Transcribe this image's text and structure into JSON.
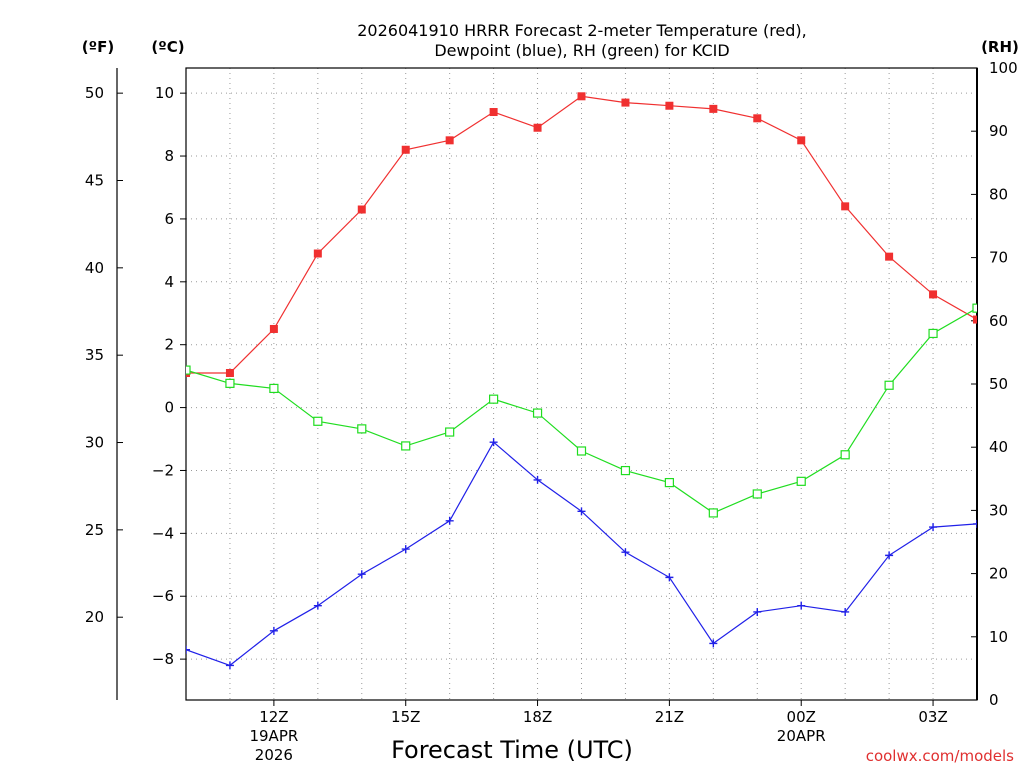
{
  "chart_data": {
    "type": "line",
    "title": "2026041910 HRRR Forecast 2-meter Temperature (red),",
    "subtitle": "Dewpoint (blue), RH (green) for KCID",
    "xlabel": "Forecast Time (UTC)",
    "units": {
      "fahrenheit": "(ºF)",
      "celsius": "(ºC)",
      "rh": "(RH)"
    },
    "x_hours": [
      10,
      11,
      12,
      13,
      14,
      15,
      16,
      17,
      18,
      19,
      20,
      21,
      22,
      23,
      24,
      25,
      26,
      27,
      28
    ],
    "xlim": [
      10,
      28
    ],
    "celsius_lim": [
      -9.3,
      10.8
    ],
    "rh_lim": [
      0,
      100
    ],
    "x_ticks": [
      {
        "hour": 12,
        "label": "12Z",
        "sub1": "19APR",
        "sub2": "2026"
      },
      {
        "hour": 15,
        "label": "15Z",
        "sub1": "",
        "sub2": ""
      },
      {
        "hour": 18,
        "label": "18Z",
        "sub1": "",
        "sub2": ""
      },
      {
        "hour": 21,
        "label": "21Z",
        "sub1": "",
        "sub2": ""
      },
      {
        "hour": 24,
        "label": "00Z",
        "sub1": "20APR",
        "sub2": ""
      },
      {
        "hour": 27,
        "label": "03Z",
        "sub1": "",
        "sub2": ""
      }
    ],
    "celsius_ticks": [
      {
        "value": 10,
        "label": "10"
      },
      {
        "value": 8,
        "label": "8"
      },
      {
        "value": 6,
        "label": "6"
      },
      {
        "value": 4,
        "label": "4"
      },
      {
        "value": 2,
        "label": "2"
      },
      {
        "value": 0,
        "label": "0"
      },
      {
        "value": -2,
        "label": "−2"
      },
      {
        "value": -4,
        "label": "−4"
      },
      {
        "value": -6,
        "label": "−6"
      },
      {
        "value": -8,
        "label": "−8"
      }
    ],
    "fahrenheit_ticks": [
      {
        "value": 50,
        "label": "50"
      },
      {
        "value": 45,
        "label": "45"
      },
      {
        "value": 40,
        "label": "40"
      },
      {
        "value": 35,
        "label": "35"
      },
      {
        "value": 30,
        "label": "30"
      },
      {
        "value": 25,
        "label": "25"
      },
      {
        "value": 20,
        "label": "20"
      }
    ],
    "rh_ticks": [
      {
        "value": 100,
        "label": "100"
      },
      {
        "value": 90,
        "label": "90"
      },
      {
        "value": 80,
        "label": "80"
      },
      {
        "value": 70,
        "label": "70"
      },
      {
        "value": 60,
        "label": "60"
      },
      {
        "value": 50,
        "label": "50"
      },
      {
        "value": 40,
        "label": "40"
      },
      {
        "value": 30,
        "label": "30"
      },
      {
        "value": 20,
        "label": "20"
      },
      {
        "value": 10,
        "label": "10"
      },
      {
        "value": 0,
        "label": "0"
      }
    ],
    "series": [
      {
        "name": "Temperature (°C)",
        "color": "#f03030",
        "marker": "filled-square",
        "axis": "celsius",
        "values": [
          1.1,
          1.1,
          2.5,
          4.9,
          6.3,
          8.2,
          8.5,
          9.4,
          8.9,
          9.9,
          9.7,
          9.6,
          9.5,
          9.2,
          8.5,
          6.4,
          4.8,
          3.6,
          2.8
        ]
      },
      {
        "name": "Dewpoint (°C)",
        "color": "#2020e8",
        "marker": "plus",
        "axis": "celsius",
        "values": [
          -7.7,
          -8.2,
          -7.1,
          -6.3,
          -5.3,
          -4.5,
          -3.6,
          -1.1,
          -2.3,
          -3.3,
          -4.6,
          -5.4,
          -7.5,
          -6.5,
          -6.3,
          -6.5,
          -4.7,
          -3.8,
          -3.7
        ]
      },
      {
        "name": "RH (%)",
        "color": "#20dd20",
        "marker": "open-square",
        "axis": "rh",
        "values": [
          52.2,
          50.1,
          49.3,
          44.1,
          42.9,
          40.2,
          42.4,
          47.6,
          45.4,
          39.4,
          36.3,
          34.4,
          29.6,
          32.6,
          34.6,
          38.8,
          49.8,
          58.0,
          62.0
        ]
      }
    ]
  },
  "credit": "coolwx.com/models"
}
